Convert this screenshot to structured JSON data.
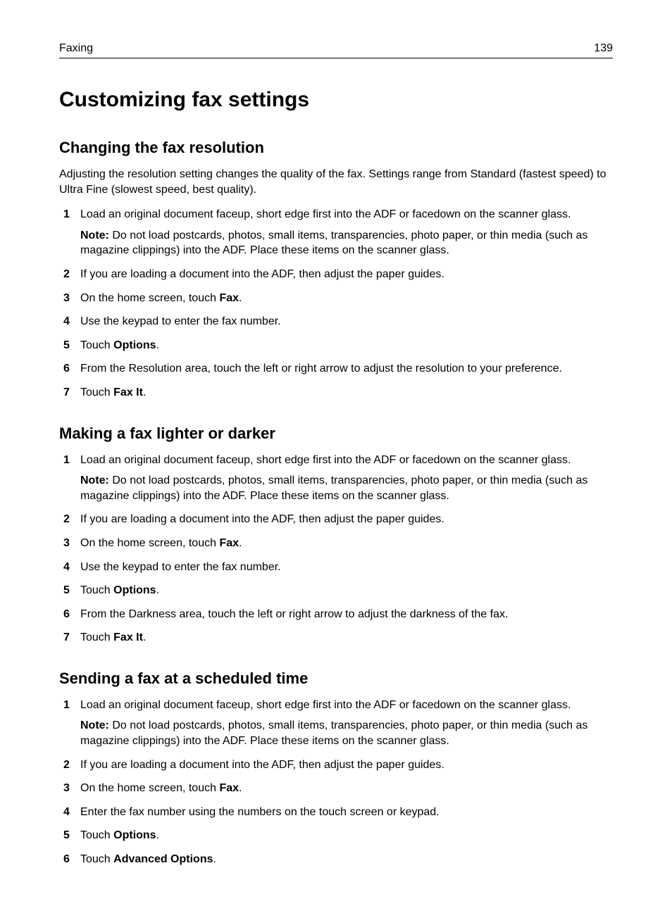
{
  "header": {
    "section": "Faxing",
    "page_number": "139"
  },
  "title": "Customizing fax settings",
  "sections": [
    {
      "heading": "Changing the fax resolution",
      "intro": "Adjusting the resolution setting changes the quality of the fax. Settings range from Standard (fastest speed) to Ultra Fine (slowest speed, best quality).",
      "steps": [
        {
          "pre": "Load an original document faceup, short edge first into the ADF or facedown on the scanner glass.",
          "note_label": "Note:",
          "note_text": "Do not load postcards, photos, small items, transparencies, photo paper, or thin media (such as magazine clippings) into the ADF. Place these items on the scanner glass."
        },
        {
          "pre": "If you are loading a document into the ADF, then adjust the paper guides."
        },
        {
          "pre": "On the home screen, touch ",
          "bold": "Fax",
          "post": "."
        },
        {
          "pre": "Use the keypad to enter the fax number."
        },
        {
          "pre": "Touch ",
          "bold": "Options",
          "post": "."
        },
        {
          "pre": "From the Resolution area, touch the left or right arrow to adjust the resolution to your preference."
        },
        {
          "pre": "Touch ",
          "bold": "Fax It",
          "post": "."
        }
      ]
    },
    {
      "heading": "Making a fax lighter or darker",
      "steps": [
        {
          "pre": "Load an original document faceup, short edge first into the ADF or facedown on the scanner glass.",
          "note_label": "Note:",
          "note_text": "Do not load postcards, photos, small items, transparencies, photo paper, or thin media (such as magazine clippings) into the ADF. Place these items on the scanner glass."
        },
        {
          "pre": "If you are loading a document into the ADF, then adjust the paper guides."
        },
        {
          "pre": "On the home screen, touch ",
          "bold": "Fax",
          "post": "."
        },
        {
          "pre": "Use the keypad to enter the fax number."
        },
        {
          "pre": "Touch ",
          "bold": "Options",
          "post": "."
        },
        {
          "pre": "From the Darkness area, touch the left or right arrow to adjust the darkness of the fax."
        },
        {
          "pre": "Touch ",
          "bold": "Fax It",
          "post": "."
        }
      ]
    },
    {
      "heading": "Sending a fax at a scheduled time",
      "steps": [
        {
          "pre": "Load an original document faceup, short edge first into the ADF or facedown on the scanner glass.",
          "note_label": "Note:",
          "note_text": "Do not load postcards, photos, small items, transparencies, photo paper, or thin media (such as magazine clippings) into the ADF. Place these items on the scanner glass."
        },
        {
          "pre": "If you are loading a document into the ADF, then adjust the paper guides."
        },
        {
          "pre": "On the home screen, touch ",
          "bold": "Fax",
          "post": "."
        },
        {
          "pre": "Enter the fax number using the numbers on the touch screen or keypad."
        },
        {
          "pre": "Touch ",
          "bold": "Options",
          "post": "."
        },
        {
          "pre": "Touch ",
          "bold": "Advanced Options",
          "post": "."
        }
      ]
    }
  ]
}
